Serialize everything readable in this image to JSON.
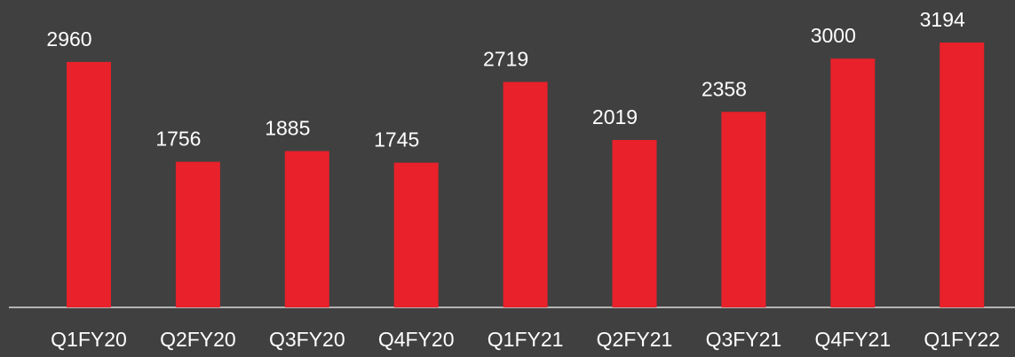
{
  "chart_data": {
    "type": "bar",
    "categories": [
      "Q1FY20",
      "Q2FY20",
      "Q3FY20",
      "Q4FY20",
      "Q1FY21",
      "Q2FY21",
      "Q3FY21",
      "Q4FY21",
      "Q1FY22"
    ],
    "values": [
      2960,
      1756,
      1885,
      1745,
      2719,
      2019,
      2358,
      3000,
      3194
    ],
    "color": "#e8212a"
  }
}
